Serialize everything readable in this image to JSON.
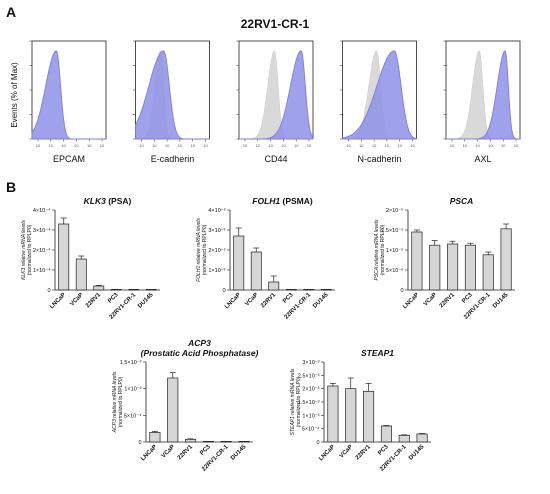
{
  "panel_a": {
    "letter": "A",
    "title": "22RV1-CR-1",
    "y_axis_label": "Events (% of Max)",
    "colors": {
      "sample": "#7b7ee0",
      "sample_fill": "#8e90e6",
      "control": "#d9d9d9"
    },
    "x_tick_text": "10",
    "histograms": [
      {
        "label": "EPCAM",
        "sample_mode": 0.33,
        "sample_width": 0.08,
        "control": false
      },
      {
        "label": "E-cadherin",
        "sample_mode": 0.38,
        "sample_width": 0.11,
        "control": true,
        "control_mode": 0.34,
        "control_width": 0.06
      },
      {
        "label": "CD44",
        "sample_mode": 0.84,
        "sample_width": 0.08,
        "control": true,
        "control_mode": 0.48,
        "control_width": 0.07
      },
      {
        "label": "N-cadherin",
        "sample_mode": 0.7,
        "sample_width": 0.13,
        "control": true,
        "control_mode": 0.46,
        "control_width": 0.08
      },
      {
        "label": "AXL",
        "sample_mode": 0.8,
        "sample_width": 0.06,
        "control": true,
        "control_mode": 0.45,
        "control_width": 0.07
      }
    ]
  },
  "panel_b": {
    "letter": "B",
    "bar_color": "#d6d6d6",
    "y_label_line2": "(normalized to RPLP0)"
  },
  "chart_data": [
    {
      "type": "bar",
      "title": "KLK3",
      "title_suffix": " (PSA)",
      "ylabel": "KLK3 relative mRNA levels",
      "categories": [
        "LNCaP",
        "VCaP",
        "22RV1",
        "PC3",
        "22RV1-CR-1",
        "DU145"
      ],
      "values": [
        0.00033,
        0.000155,
        2e-05,
        5e-07,
        5e-07,
        5e-07
      ],
      "errors": [
        3e-05,
        1.5e-05,
        3e-06,
        0,
        0,
        0
      ],
      "ylim": [
        0,
        0.0004
      ],
      "yticks": [
        0,
        0.0001,
        0.0002,
        0.0003,
        0.0004
      ],
      "ytick_labels": [
        "0",
        "1×10⁻⁴",
        "2×10⁻⁴",
        "3×10⁻⁴",
        "4×10⁻⁴"
      ]
    },
    {
      "type": "bar",
      "title": "FOLH1",
      "title_suffix": " (PSMA)",
      "ylabel": "FOLH1 relative mRNA levels",
      "categories": [
        "LNCaP",
        "VCaP",
        "22RV1",
        "PC3",
        "22RV1-CR-1",
        "DU145"
      ],
      "values": [
        0.0027,
        0.0019,
        0.0004,
        1e-05,
        1e-05,
        1e-05
      ],
      "errors": [
        0.0004,
        0.0002,
        0.0003,
        0,
        0,
        0
      ],
      "ylim": [
        0,
        0.004
      ],
      "yticks": [
        0,
        0.001,
        0.002,
        0.003,
        0.004
      ],
      "ytick_labels": [
        "0",
        "1×10⁻³",
        "2×10⁻³",
        "3×10⁻³",
        "4×10⁻³"
      ]
    },
    {
      "type": "bar",
      "title": "PSCA",
      "title_suffix": "",
      "ylabel": "PSCA relative mRNA levels",
      "categories": [
        "LNCaP",
        "VCaP",
        "22RV1",
        "PC3",
        "22RV1-CR-1",
        "DU145"
      ],
      "values": [
        1.45e-05,
        1.12e-05,
        1.15e-05,
        1.12e-05,
        8.8e-06,
        1.53e-05
      ],
      "errors": [
        5e-07,
        1.2e-06,
        7e-07,
        5e-07,
        7e-07,
        1.2e-06
      ],
      "ylim": [
        0,
        2e-05
      ],
      "yticks": [
        0,
        5e-06,
        1e-05,
        1.5e-05,
        2e-05
      ],
      "ytick_labels": [
        "0",
        "5×10⁻⁶",
        "1×10⁻⁵",
        "1.5×10⁻⁵",
        "2×10⁻⁵"
      ]
    },
    {
      "type": "bar",
      "title": "ACP3",
      "title_line2": "(Prostatic Acid Phosphatase)",
      "ylabel": "ACP3 relative mRNA levels",
      "categories": [
        "LNCaP",
        "VCaP",
        "22RV1",
        "PC3",
        "22RV1-CR-1",
        "DU145"
      ],
      "values": [
        0.00018,
        0.0012,
        5e-05,
        5e-06,
        5e-06,
        5e-06
      ],
      "errors": [
        2e-05,
        0.0001,
        1e-05,
        0,
        0,
        0
      ],
      "ylim": [
        0,
        0.0015
      ],
      "yticks": [
        0,
        0.0005,
        0.001,
        0.0015
      ],
      "ytick_labels": [
        "0",
        "5×10⁻⁴",
        "1×10⁻³",
        "1.5×10⁻³"
      ]
    },
    {
      "type": "bar",
      "title": "STEAP1",
      "title_suffix": "",
      "ylabel": "STEAP1 relative mRNA levels",
      "categories": [
        "LNCaP",
        "VCaP",
        "22RV1",
        "PC3",
        "22RV1-CR-1",
        "DU145"
      ],
      "values": [
        0.0021,
        0.002,
        0.0019,
        0.0006,
        0.00025,
        0.0003
      ],
      "errors": [
        0.0001,
        0.0004,
        0.0003,
        2e-05,
        2e-05,
        2e-05
      ],
      "ylim": [
        0,
        0.003
      ],
      "yticks": [
        0,
        0.0005,
        0.001,
        0.0015,
        0.002,
        0.0025,
        0.003
      ],
      "ytick_labels": [
        "0",
        "5×10⁻⁴",
        "1×10⁻³",
        "1.5×10⁻³",
        "2×10⁻³",
        "2.5×10⁻³",
        "3×10⁻³"
      ]
    }
  ]
}
